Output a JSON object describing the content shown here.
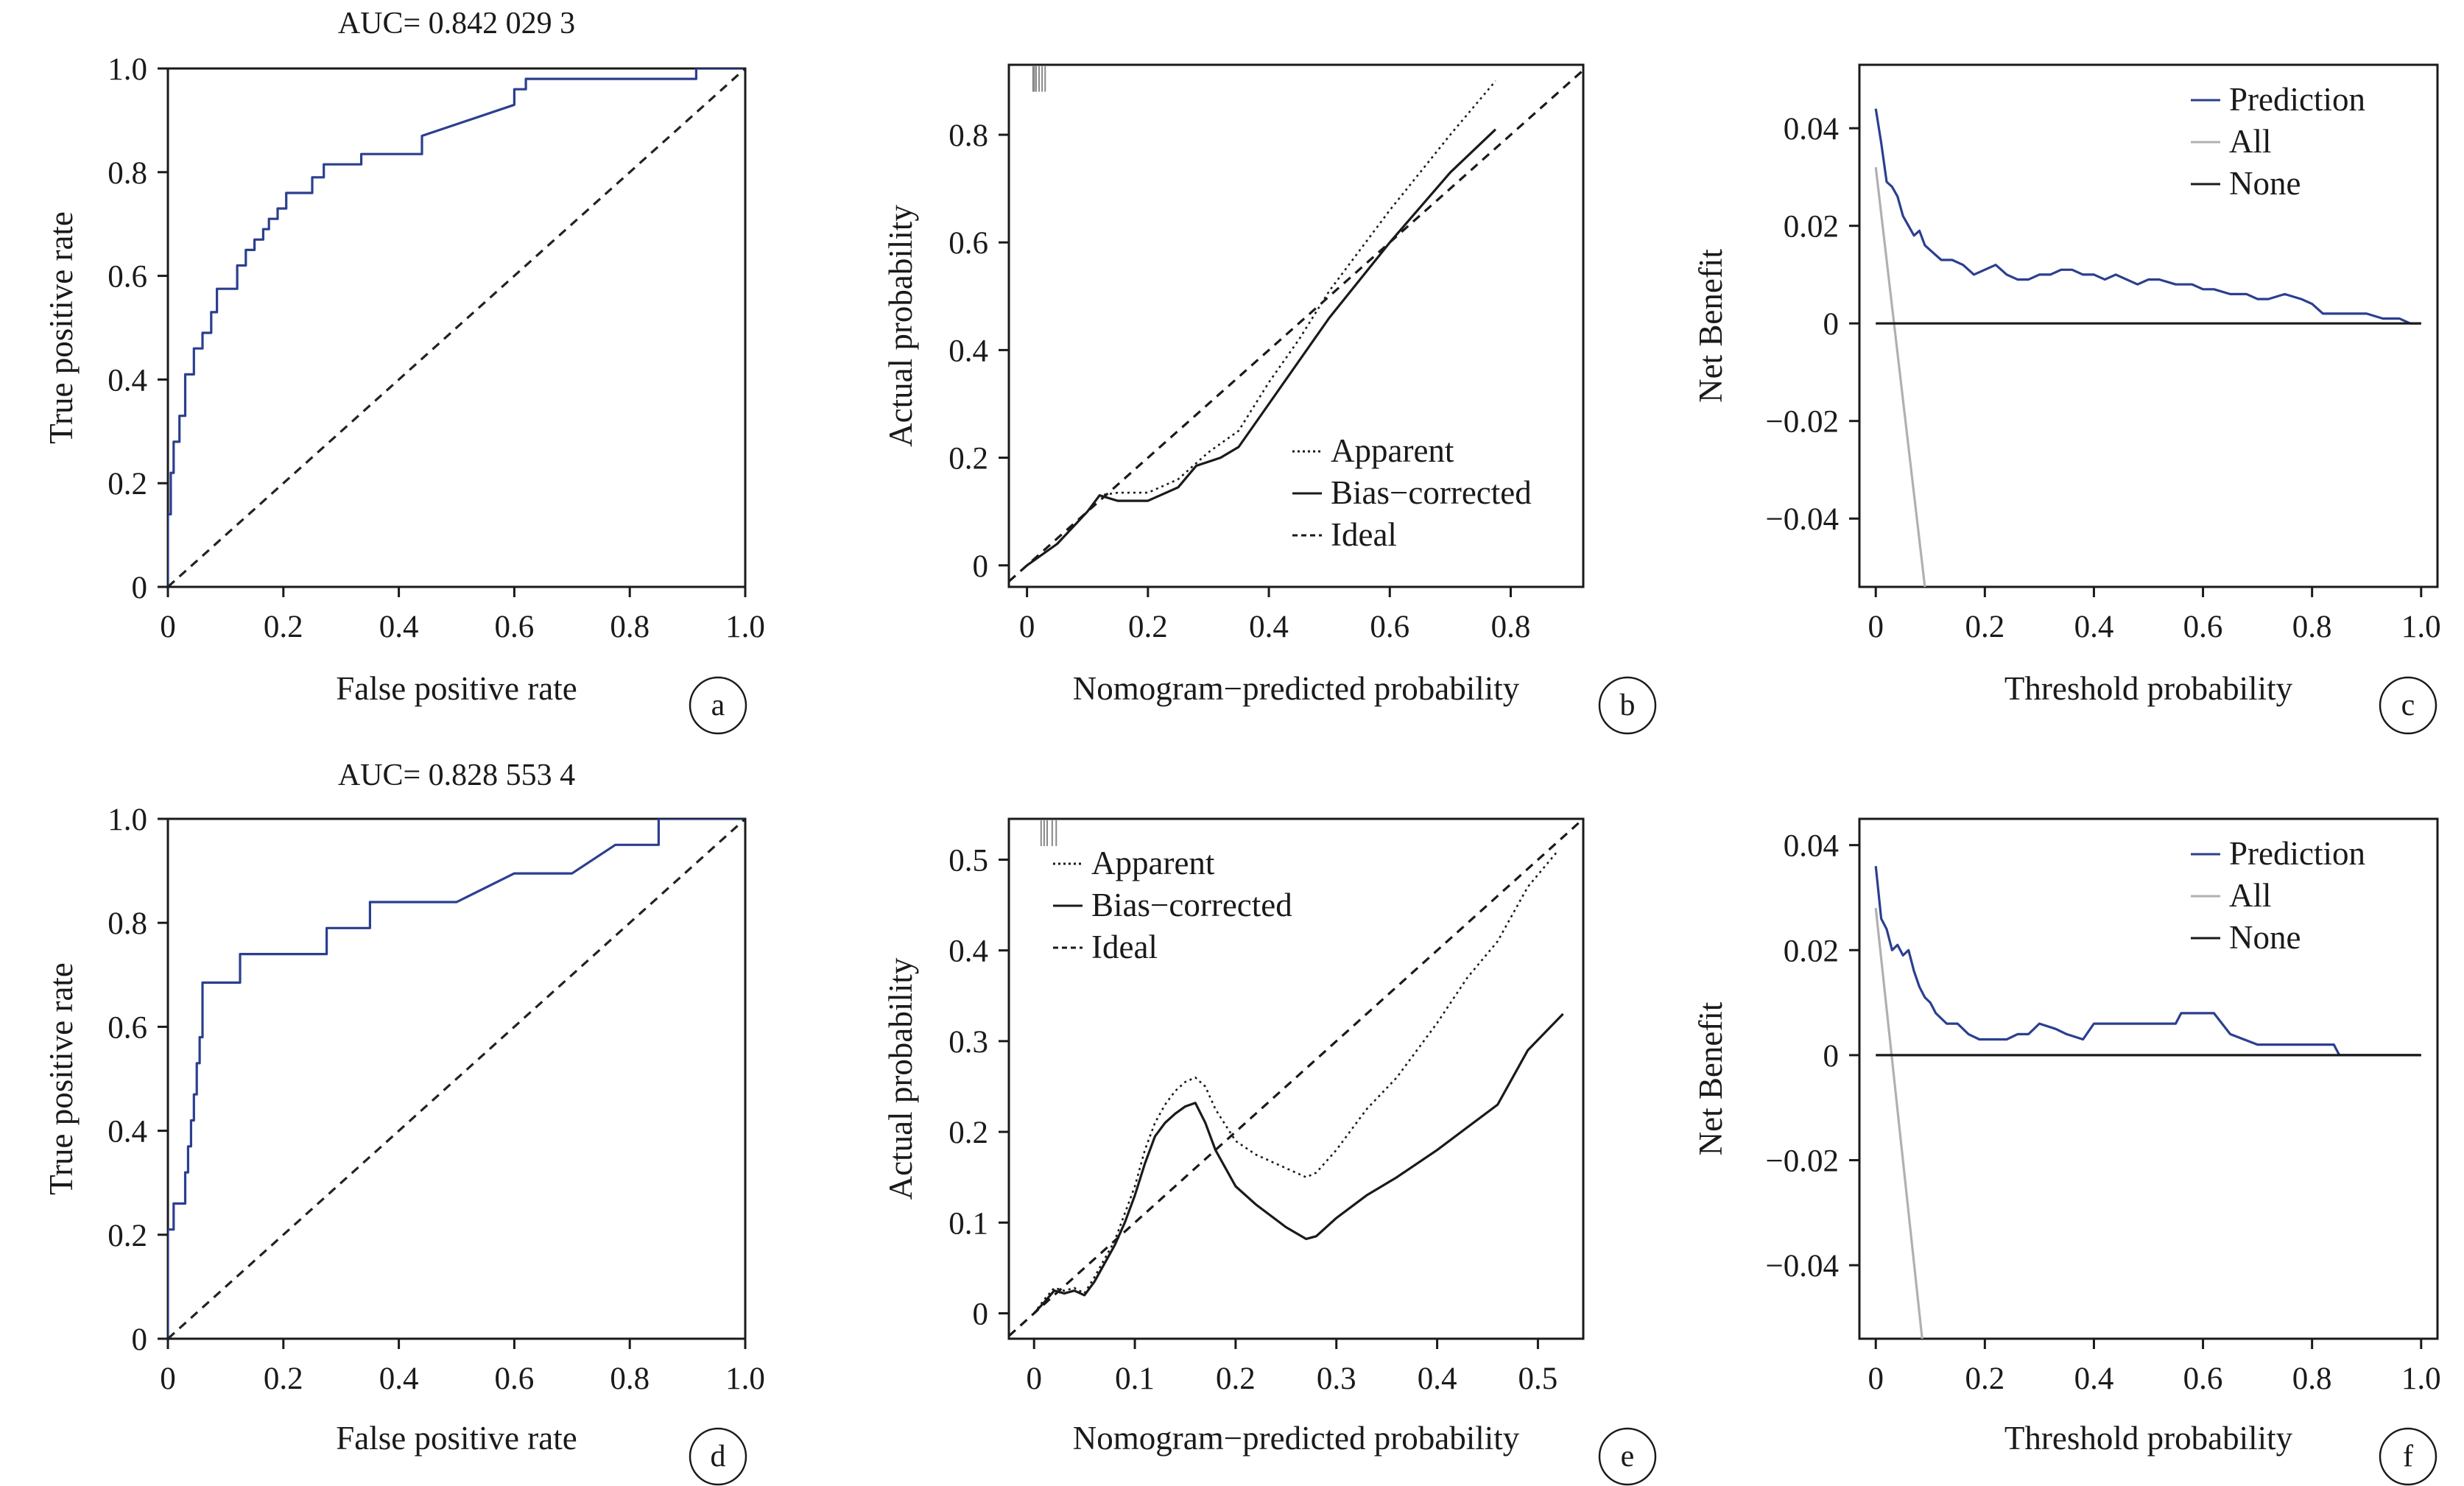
{
  "figure": {
    "panels": [
      {
        "tag": "a",
        "kind": "roc"
      },
      {
        "tag": "b",
        "kind": "calibration"
      },
      {
        "tag": "c",
        "kind": "dca"
      },
      {
        "tag": "d",
        "kind": "roc"
      },
      {
        "tag": "e",
        "kind": "calibration"
      },
      {
        "tag": "f",
        "kind": "dca"
      }
    ]
  },
  "chart_data": [
    {
      "panel": "a",
      "type": "line",
      "title": "AUC= 0.842 029 3",
      "xlabel": "False positive rate",
      "ylabel": "True positive rate",
      "xlim": [
        0,
        1
      ],
      "ylim": [
        0,
        1
      ],
      "xticks": [
        0,
        0.2,
        0.4,
        0.6,
        0.8,
        1.0
      ],
      "xtick_labels": [
        "0",
        "0.2",
        "0.4",
        "0.6",
        "0.8",
        "1.0"
      ],
      "yticks": [
        0,
        0.2,
        0.4,
        0.6,
        0.8,
        1.0
      ],
      "ytick_labels": [
        "0",
        "0.2",
        "0.4",
        "0.6",
        "0.8",
        "1.0"
      ],
      "grid": false,
      "colors": {
        "roc": "#2b3f8f",
        "diagonal": "#222222"
      },
      "series": [
        {
          "style": "solid",
          "role": "roc",
          "x": [
            0,
            0,
            0.005,
            0.005,
            0.01,
            0.01,
            0.02,
            0.02,
            0.03,
            0.03,
            0.045,
            0.045,
            0.06,
            0.06,
            0.075,
            0.075,
            0.085,
            0.085,
            0.12,
            0.12,
            0.135,
            0.135,
            0.15,
            0.15,
            0.165,
            0.165,
            0.175,
            0.175,
            0.19,
            0.19,
            0.205,
            0.205,
            0.25,
            0.25,
            0.27,
            0.27,
            0.335,
            0.335,
            0.44,
            0.44,
            0.6,
            0.6,
            0.62,
            0.62,
            0.635,
            0.635,
            0.915,
            0.915,
            1.0
          ],
          "y": [
            0,
            0.14,
            0.14,
            0.22,
            0.22,
            0.28,
            0.28,
            0.33,
            0.33,
            0.41,
            0.41,
            0.46,
            0.46,
            0.49,
            0.49,
            0.53,
            0.53,
            0.575,
            0.575,
            0.62,
            0.62,
            0.65,
            0.65,
            0.67,
            0.67,
            0.69,
            0.69,
            0.71,
            0.71,
            0.73,
            0.73,
            0.76,
            0.76,
            0.79,
            0.79,
            0.815,
            0.815,
            0.835,
            0.835,
            0.87,
            0.93,
            0.96,
            0.96,
            0.98,
            0.98,
            0.98,
            0.98,
            1.0,
            1.0
          ]
        },
        {
          "style": "dashed",
          "role": "diagonal",
          "x": [
            0,
            1
          ],
          "y": [
            0,
            1
          ]
        }
      ]
    },
    {
      "panel": "b",
      "type": "line",
      "title": "",
      "xlabel": "Nomogram−predicted probability",
      "ylabel": "Actual probability",
      "xlim": [
        -0.03,
        0.92
      ],
      "ylim": [
        -0.04,
        0.93
      ],
      "xticks": [
        0,
        0.2,
        0.4,
        0.6,
        0.8
      ],
      "xtick_labels": [
        "0",
        "0.2",
        "0.4",
        "0.6",
        "0.8"
      ],
      "yticks": [
        0,
        0.2,
        0.4,
        0.6,
        0.8
      ],
      "ytick_labels": [
        "0",
        "0.2",
        "0.4",
        "0.6",
        "0.8"
      ],
      "grid": false,
      "legend": {
        "position": "bottom-right",
        "entries": [
          {
            "label": "Apparent",
            "style": "dotted"
          },
          {
            "label": "Bias−corrected",
            "style": "solid"
          },
          {
            "label": "Ideal",
            "style": "dashed"
          }
        ]
      },
      "rug": {
        "x": [
          0.01,
          0.012,
          0.015,
          0.02,
          0.025,
          0.03
        ],
        "height": 0.05
      },
      "series": [
        {
          "name": "Apparent",
          "style": "dotted",
          "x": [
            0,
            0.05,
            0.1,
            0.12,
            0.15,
            0.2,
            0.25,
            0.3,
            0.35,
            0.4,
            0.45,
            0.5,
            0.6,
            0.7,
            0.775
          ],
          "y": [
            0,
            0.04,
            0.1,
            0.13,
            0.135,
            0.135,
            0.16,
            0.21,
            0.25,
            0.34,
            0.42,
            0.51,
            0.66,
            0.8,
            0.9
          ]
        },
        {
          "name": "Bias−corrected",
          "style": "solid",
          "x": [
            0,
            0.05,
            0.1,
            0.12,
            0.15,
            0.2,
            0.25,
            0.28,
            0.32,
            0.35,
            0.4,
            0.45,
            0.5,
            0.6,
            0.7,
            0.775
          ],
          "y": [
            0,
            0.04,
            0.1,
            0.13,
            0.12,
            0.12,
            0.145,
            0.185,
            0.2,
            0.22,
            0.3,
            0.38,
            0.46,
            0.6,
            0.73,
            0.81
          ]
        },
        {
          "name": "Ideal",
          "style": "dashed",
          "x": [
            -0.03,
            0.92
          ],
          "y": [
            -0.03,
            0.92
          ]
        }
      ]
    },
    {
      "panel": "c",
      "type": "line",
      "title": "",
      "xlabel": "Threshold probability",
      "ylabel": "Net Benefit",
      "xlim": [
        -0.03,
        1.03
      ],
      "ylim": [
        -0.054,
        0.053
      ],
      "xticks": [
        0,
        0.2,
        0.4,
        0.6,
        0.8,
        1.0
      ],
      "xtick_labels": [
        "0",
        "0.2",
        "0.4",
        "0.6",
        "0.8",
        "1.0"
      ],
      "yticks": [
        0.04,
        0.02,
        0,
        -0.02,
        -0.04
      ],
      "ytick_labels": [
        "0.04",
        "0.02",
        "0",
        "−0.02",
        "−0.04"
      ],
      "grid": false,
      "legend": {
        "position": "top-right",
        "entries": [
          {
            "label": "Prediction",
            "color": "#2b3f8f"
          },
          {
            "label": "All",
            "color": "#b0b0b0"
          },
          {
            "label": "None",
            "color": "#1a1a1a"
          }
        ]
      },
      "series": [
        {
          "name": "Prediction",
          "color": "#2b3f8f",
          "x": [
            0,
            0.01,
            0.02,
            0.03,
            0.04,
            0.05,
            0.06,
            0.07,
            0.08,
            0.09,
            0.1,
            0.12,
            0.14,
            0.16,
            0.18,
            0.2,
            0.22,
            0.24,
            0.26,
            0.28,
            0.3,
            0.32,
            0.34,
            0.36,
            0.38,
            0.4,
            0.42,
            0.44,
            0.46,
            0.48,
            0.5,
            0.52,
            0.55,
            0.58,
            0.6,
            0.62,
            0.65,
            0.68,
            0.7,
            0.72,
            0.75,
            0.78,
            0.8,
            0.82,
            0.85,
            0.88,
            0.9,
            0.93,
            0.95,
            0.96,
            0.98,
            1.0
          ],
          "y": [
            0.044,
            0.037,
            0.029,
            0.028,
            0.026,
            0.022,
            0.02,
            0.018,
            0.019,
            0.016,
            0.015,
            0.013,
            0.013,
            0.012,
            0.01,
            0.011,
            0.012,
            0.01,
            0.009,
            0.009,
            0.01,
            0.01,
            0.011,
            0.011,
            0.01,
            0.01,
            0.009,
            0.01,
            0.009,
            0.008,
            0.009,
            0.009,
            0.008,
            0.008,
            0.007,
            0.007,
            0.006,
            0.006,
            0.005,
            0.005,
            0.006,
            0.005,
            0.004,
            0.002,
            0.002,
            0.002,
            0.002,
            0.001,
            0.001,
            0.001,
            0.0,
            0.0
          ]
        },
        {
          "name": "All",
          "color": "#b0b0b0",
          "x": [
            0,
            0.09
          ],
          "y": [
            0.032,
            -0.054
          ]
        },
        {
          "name": "None",
          "color": "#1a1a1a",
          "x": [
            0,
            1.0
          ],
          "y": [
            0,
            0
          ]
        }
      ]
    },
    {
      "panel": "d",
      "type": "line",
      "title": "AUC= 0.828 553 4",
      "xlabel": "False positive rate",
      "ylabel": "True positive rate",
      "xlim": [
        0,
        1
      ],
      "ylim": [
        0,
        1
      ],
      "xticks": [
        0,
        0.2,
        0.4,
        0.6,
        0.8,
        1.0
      ],
      "xtick_labels": [
        "0",
        "0.2",
        "0.4",
        "0.6",
        "0.8",
        "1.0"
      ],
      "yticks": [
        0,
        0.2,
        0.4,
        0.6,
        0.8,
        1.0
      ],
      "ytick_labels": [
        "0",
        "0.2",
        "0.4",
        "0.6",
        "0.8",
        "1.0"
      ],
      "grid": false,
      "colors": {
        "roc": "#2b3f8f",
        "diagonal": "#222222"
      },
      "series": [
        {
          "style": "solid",
          "role": "roc",
          "x": [
            0,
            0,
            0.01,
            0.01,
            0.03,
            0.03,
            0.035,
            0.035,
            0.04,
            0.04,
            0.045,
            0.045,
            0.05,
            0.05,
            0.055,
            0.055,
            0.06,
            0.06,
            0.125,
            0.125,
            0.275,
            0.275,
            0.3,
            0.3,
            0.35,
            0.35,
            0.5,
            0.6,
            0.7,
            0.775,
            0.85,
            0.85,
            1.0
          ],
          "y": [
            0,
            0.21,
            0.21,
            0.26,
            0.26,
            0.32,
            0.32,
            0.37,
            0.37,
            0.42,
            0.42,
            0.47,
            0.47,
            0.53,
            0.53,
            0.58,
            0.58,
            0.685,
            0.685,
            0.74,
            0.74,
            0.79,
            0.79,
            0.79,
            0.79,
            0.84,
            0.84,
            0.895,
            0.895,
            0.95,
            0.95,
            1.0,
            1.0
          ]
        },
        {
          "style": "dashed",
          "role": "diagonal",
          "x": [
            0,
            1
          ],
          "y": [
            0,
            1
          ]
        }
      ]
    },
    {
      "panel": "e",
      "type": "line",
      "title": "",
      "xlabel": "Nomogram−predicted probability",
      "ylabel": "Actual probability",
      "xlim": [
        -0.025,
        0.545
      ],
      "ylim": [
        -0.028,
        0.545
      ],
      "xticks": [
        0,
        0.1,
        0.2,
        0.3,
        0.4,
        0.5
      ],
      "xtick_labels": [
        "0",
        "0.1",
        "0.2",
        "0.3",
        "0.4",
        "0.5"
      ],
      "yticks": [
        0,
        0.1,
        0.2,
        0.3,
        0.4,
        0.5
      ],
      "ytick_labels": [
        "0",
        "0.1",
        "0.2",
        "0.3",
        "0.4",
        "0.5"
      ],
      "grid": false,
      "legend": {
        "position": "top-left",
        "entries": [
          {
            "label": "Apparent",
            "style": "dotted"
          },
          {
            "label": "Bias−corrected",
            "style": "solid"
          },
          {
            "label": "Ideal",
            "style": "dashed"
          }
        ]
      },
      "rug": {
        "x": [
          0.007,
          0.01,
          0.013,
          0.018,
          0.022
        ],
        "height": 0.03
      },
      "series": [
        {
          "name": "Apparent",
          "style": "dotted",
          "x": [
            0,
            0.01,
            0.02,
            0.03,
            0.04,
            0.05,
            0.06,
            0.07,
            0.08,
            0.09,
            0.1,
            0.11,
            0.12,
            0.13,
            0.14,
            0.15,
            0.16,
            0.17,
            0.18,
            0.2,
            0.22,
            0.25,
            0.27,
            0.28,
            0.3,
            0.33,
            0.36,
            0.4,
            0.43,
            0.46,
            0.49,
            0.52
          ],
          "y": [
            0,
            0.015,
            0.028,
            0.025,
            0.028,
            0.022,
            0.04,
            0.06,
            0.08,
            0.11,
            0.14,
            0.18,
            0.21,
            0.23,
            0.245,
            0.255,
            0.26,
            0.25,
            0.225,
            0.19,
            0.175,
            0.16,
            0.15,
            0.155,
            0.18,
            0.225,
            0.26,
            0.32,
            0.37,
            0.41,
            0.47,
            0.51
          ]
        },
        {
          "name": "Bias−corrected",
          "style": "solid",
          "x": [
            0,
            0.01,
            0.02,
            0.03,
            0.04,
            0.05,
            0.06,
            0.07,
            0.08,
            0.09,
            0.1,
            0.11,
            0.12,
            0.13,
            0.14,
            0.15,
            0.16,
            0.17,
            0.18,
            0.2,
            0.22,
            0.25,
            0.27,
            0.28,
            0.3,
            0.33,
            0.36,
            0.4,
            0.43,
            0.46,
            0.49,
            0.525
          ],
          "y": [
            0,
            0.012,
            0.025,
            0.022,
            0.025,
            0.02,
            0.035,
            0.055,
            0.075,
            0.1,
            0.13,
            0.165,
            0.195,
            0.21,
            0.22,
            0.228,
            0.232,
            0.21,
            0.18,
            0.14,
            0.12,
            0.095,
            0.082,
            0.085,
            0.105,
            0.13,
            0.15,
            0.18,
            0.205,
            0.23,
            0.29,
            0.33
          ]
        },
        {
          "name": "Ideal",
          "style": "dashed",
          "x": [
            -0.025,
            0.545
          ],
          "y": [
            -0.025,
            0.545
          ]
        }
      ]
    },
    {
      "panel": "f",
      "type": "line",
      "title": "",
      "xlabel": "Threshold probability",
      "ylabel": "Net Benefit",
      "xlim": [
        -0.03,
        1.03
      ],
      "ylim": [
        -0.054,
        0.045
      ],
      "xticks": [
        0,
        0.2,
        0.4,
        0.6,
        0.8,
        1.0
      ],
      "xtick_labels": [
        "0",
        "0.2",
        "0.4",
        "0.6",
        "0.8",
        "1.0"
      ],
      "yticks": [
        0.04,
        0.02,
        0,
        -0.02,
        -0.04
      ],
      "ytick_labels": [
        "0.04",
        "0.02",
        "0",
        "−0.02",
        "−0.04"
      ],
      "grid": false,
      "legend": {
        "position": "top-right",
        "entries": [
          {
            "label": "Prediction",
            "color": "#2b3f8f"
          },
          {
            "label": "All",
            "color": "#b0b0b0"
          },
          {
            "label": "None",
            "color": "#1a1a1a"
          }
        ]
      },
      "series": [
        {
          "name": "Prediction",
          "color": "#2b3f8f",
          "x": [
            0,
            0.01,
            0.02,
            0.03,
            0.04,
            0.05,
            0.06,
            0.07,
            0.08,
            0.09,
            0.1,
            0.11,
            0.13,
            0.15,
            0.17,
            0.19,
            0.2,
            0.22,
            0.24,
            0.26,
            0.28,
            0.3,
            0.33,
            0.35,
            0.38,
            0.4,
            0.45,
            0.5,
            0.55,
            0.56,
            0.6,
            0.62,
            0.65,
            0.7,
            0.75,
            0.8,
            0.84,
            0.85,
            0.9,
            1.0
          ],
          "y": [
            0.036,
            0.026,
            0.024,
            0.02,
            0.021,
            0.019,
            0.02,
            0.016,
            0.013,
            0.011,
            0.01,
            0.008,
            0.006,
            0.006,
            0.004,
            0.003,
            0.003,
            0.003,
            0.003,
            0.004,
            0.004,
            0.006,
            0.005,
            0.004,
            0.003,
            0.006,
            0.006,
            0.006,
            0.006,
            0.008,
            0.008,
            0.008,
            0.004,
            0.002,
            0.002,
            0.002,
            0.002,
            0.0,
            0.0,
            0.0
          ]
        },
        {
          "name": "All",
          "color": "#b0b0b0",
          "x": [
            0,
            0.085
          ],
          "y": [
            0.028,
            -0.054
          ]
        },
        {
          "name": "None",
          "color": "#1a1a1a",
          "x": [
            0,
            1.0
          ],
          "y": [
            0,
            0
          ]
        }
      ]
    }
  ]
}
